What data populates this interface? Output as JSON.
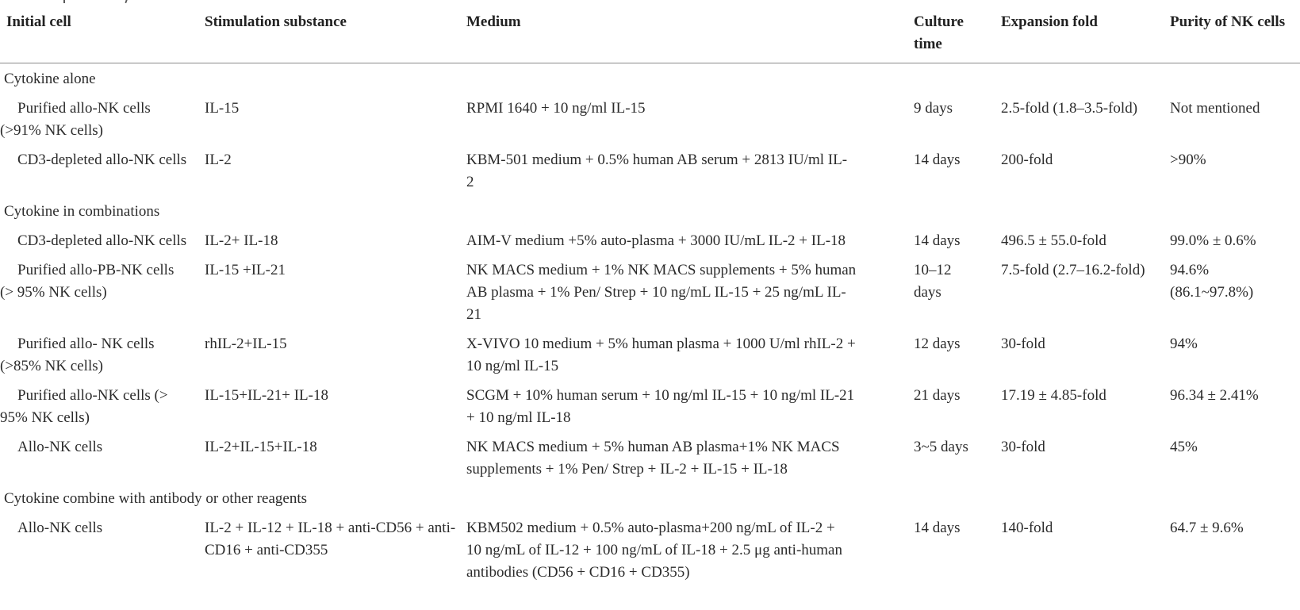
{
  "page": {
    "background": "#ffffff",
    "text_color": "#2b2b2b",
    "rule_color": "#8a8a8a"
  },
  "table": {
    "columns": [
      {
        "label": "Initial cell"
      },
      {
        "label": "Stimulation substance"
      },
      {
        "label": "Medium"
      },
      {
        "label": "Culture time"
      },
      {
        "label": "Expansion fold"
      },
      {
        "label": "Purity of NK cells"
      }
    ],
    "sections": [
      {
        "title": "Cytokine alone",
        "rows": [
          {
            "initial_cell": "Purified allo-NK cells\n(>91% NK cells)",
            "stimulation": "IL-15",
            "medium": "RPMI 1640 + 10 ng/ml IL-15",
            "culture_time": "9 days",
            "expansion_fold": "2.5-fold (1.8–3.5-fold)",
            "purity": "Not mentioned"
          },
          {
            "initial_cell": "CD3-depleted allo-NK cells",
            "stimulation": "IL-2",
            "medium": "KBM-501 medium + 0.5% human AB serum + 2813 IU/ml IL-\n2",
            "culture_time": "14 days",
            "expansion_fold": "200-fold",
            "purity": ">90%"
          }
        ]
      },
      {
        "title": "Cytokine in combinations",
        "rows": [
          {
            "initial_cell": "CD3-depleted allo-NK cells",
            "stimulation": "IL-2+ IL-18",
            "medium": "AIM-V medium +5% auto-plasma + 3000 IU/mL IL-2 + IL-18",
            "culture_time": "14 days",
            "expansion_fold": "496.5 ± 55.0-fold",
            "purity": "99.0% ± 0.6%"
          },
          {
            "initial_cell": "Purified allo-PB-NK cells\n(> 95% NK cells)",
            "stimulation": "IL-15 +IL-21",
            "medium": "NK MACS medium + 1% NK MACS supplements + 5% human\nAB plasma + 1% Pen/ Strep + 10 ng/mL IL-15 + 25 ng/mL IL-\n21",
            "culture_time": "10–12\ndays",
            "expansion_fold": "7.5-fold (2.7–16.2-fold)",
            "purity": "94.6%\n(86.1~97.8%)"
          },
          {
            "initial_cell": "Purified allo- NK cells\n(>85% NK cells)",
            "stimulation": "rhIL-2+IL-15",
            "medium": "X-VIVO 10 medium + 5% human plasma + 1000 U/ml rhIL-2 +\n10 ng/ml IL-15",
            "culture_time": "12 days",
            "expansion_fold": "30-fold",
            "purity": "94%"
          },
          {
            "initial_cell": "Purified allo-NK cells (>\n95% NK cells)",
            "stimulation": "IL-15+IL-21+ IL-18",
            "medium": "SCGM + 10% human serum + 10 ng/ml IL-15 + 10 ng/ml IL-21\n+ 10 ng/ml IL-18",
            "culture_time": "21 days",
            "expansion_fold": "17.19 ± 4.85-fold",
            "purity": "96.34 ± 2.41%"
          },
          {
            "initial_cell": "Allo-NK cells",
            "stimulation": "IL-2+IL-15+IL-18",
            "medium": "NK MACS medium + 5% human AB plasma+1% NK MACS\nsupplements + 1% Pen/ Strep + IL-2 + IL-15 + IL-18",
            "culture_time": "3~5 days",
            "expansion_fold": "30-fold",
            "purity": "45%"
          }
        ]
      },
      {
        "title": "Cytokine combine with antibody or other reagents",
        "rows": [
          {
            "initial_cell": "Allo-NK cells",
            "stimulation": "IL-2 + IL-12 + IL-18 + anti-CD56 + anti-\nCD16 + anti-CD355",
            "medium": "KBM502 medium + 0.5% auto-plasma+200 ng/mL of IL-2 +\n10 ng/mL of IL-12 + 100 ng/mL of IL-18 + 2.5 μg anti-human\nantibodies (CD56 + CD16 + CD355)",
            "culture_time": "14 days",
            "expansion_fold": "140-fold",
            "purity": "64.7 ± 9.6%"
          }
        ]
      }
    ]
  }
}
